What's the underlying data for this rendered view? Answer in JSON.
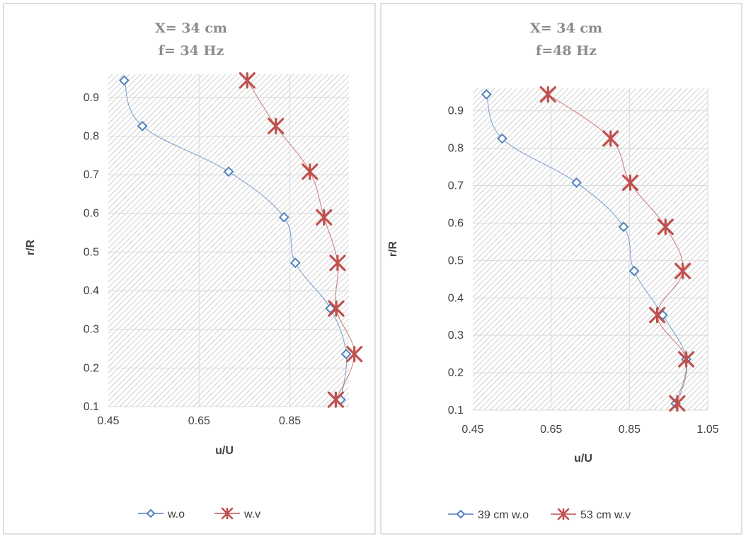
{
  "colors": {
    "series_wo": "#4f81bd",
    "series_wv": "#c0504d",
    "hatch": "#d0d0d0",
    "grid": "#d9d9d9",
    "text": "#404040",
    "title": "#8c8c8c"
  },
  "chart_data": [
    {
      "type": "scatter",
      "title_line1": "X= 34 cm",
      "title_line2": "f= 34 Hz",
      "xlabel": "u/U",
      "ylabel": "r/R",
      "xlim": [
        0.45,
        0.98
      ],
      "ylim": [
        0.1,
        0.96
      ],
      "xticks": [
        "0.45",
        "0.65",
        "0.85"
      ],
      "xtick_values": [
        0.45,
        0.65,
        0.85
      ],
      "yticks": [
        "0.1",
        "0.2",
        "0.3",
        "0.4",
        "0.5",
        "0.6",
        "0.7",
        "0.8",
        "0.9"
      ],
      "ytick_values": [
        0.1,
        0.2,
        0.3,
        0.4,
        0.5,
        0.6,
        0.7,
        0.8,
        0.9
      ],
      "grid": true,
      "legend_position": "bottom",
      "series": [
        {
          "name": "w.o",
          "marker": "diamond-open",
          "color": "#4f81bd",
          "x": [
            0.485,
            0.525,
            0.715,
            0.837,
            0.862,
            0.939,
            0.974,
            0.962
          ],
          "y": [
            0.944,
            0.826,
            0.708,
            0.59,
            0.472,
            0.354,
            0.236,
            0.118
          ]
        },
        {
          "name": "w.v",
          "marker": "star-x",
          "color": "#c0504d",
          "x": [
            0.756,
            0.819,
            0.894,
            0.925,
            0.955,
            0.952,
            0.992,
            0.951
          ],
          "y": [
            0.944,
            0.826,
            0.708,
            0.59,
            0.472,
            0.354,
            0.236,
            0.118
          ]
        }
      ]
    },
    {
      "type": "scatter",
      "title_line1": "X= 34 cm",
      "title_line2": "f=48 Hz",
      "xlabel": "u/U",
      "ylabel": "r/R",
      "xlim": [
        0.45,
        1.05
      ],
      "ylim": [
        0.1,
        0.96
      ],
      "xticks": [
        "0.45",
        "0.65",
        "0.85",
        "1.05"
      ],
      "xtick_values": [
        0.45,
        0.65,
        0.85,
        1.05
      ],
      "yticks": [
        "0.1",
        "0.2",
        "0.3",
        "0.4",
        "0.5",
        "0.6",
        "0.7",
        "0.8",
        "0.9"
      ],
      "ytick_values": [
        0.1,
        0.2,
        0.3,
        0.4,
        0.5,
        0.6,
        0.7,
        0.8,
        0.9
      ],
      "grid": true,
      "legend_position": "bottom",
      "series": [
        {
          "name": "39 cm w.o",
          "marker": "diamond-open",
          "color": "#4f81bd",
          "x": [
            0.485,
            0.525,
            0.715,
            0.835,
            0.862,
            0.935,
            0.995,
            0.968
          ],
          "y": [
            0.944,
            0.826,
            0.708,
            0.59,
            0.472,
            0.354,
            0.236,
            0.118
          ]
        },
        {
          "name": "53 cm w.v",
          "marker": "star-x",
          "color": "#c0504d",
          "x": [
            0.642,
            0.802,
            0.852,
            0.942,
            0.986,
            0.921,
            0.995,
            0.972
          ],
          "y": [
            0.944,
            0.826,
            0.708,
            0.59,
            0.472,
            0.354,
            0.236,
            0.118
          ]
        }
      ]
    }
  ]
}
